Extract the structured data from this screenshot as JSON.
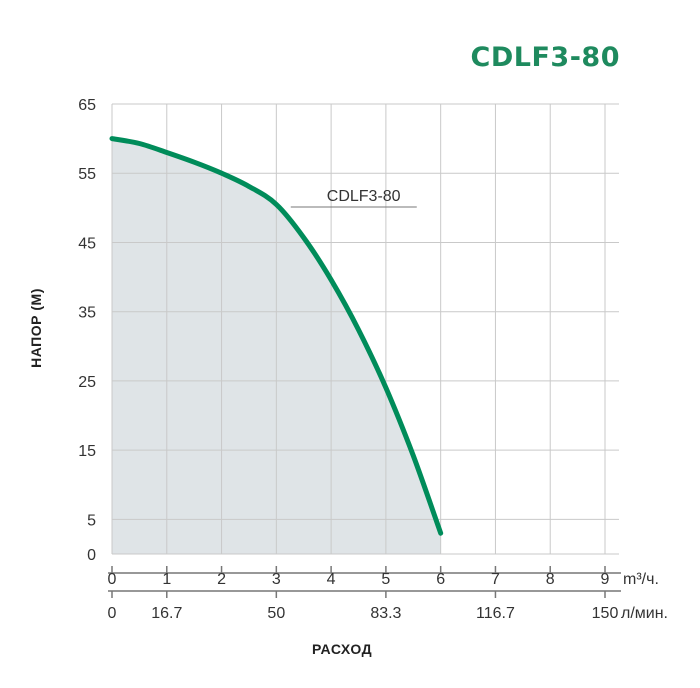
{
  "chart_data": {
    "type": "area",
    "title": "CDLF3-80",
    "ylabel": "НАПОР (М)",
    "xlabel": "РАСХОД",
    "ylim": [
      0,
      65
    ],
    "xlim": [
      0,
      9
    ],
    "yticks": [
      "65",
      "55",
      "45",
      "35",
      "25",
      "15",
      "5",
      "0"
    ],
    "x_primary_unit": "m³/ч.",
    "x_primary_ticks": [
      "0",
      "1",
      "2",
      "3",
      "4",
      "5",
      "6",
      "7",
      "8",
      "9"
    ],
    "x_secondary_unit": "л/мин.",
    "x_secondary_ticks": [
      {
        "label": "0",
        "at": 0
      },
      {
        "label": "16.7",
        "at": 1
      },
      {
        "label": "50",
        "at": 3
      },
      {
        "label": "83.3",
        "at": 5
      },
      {
        "label": "116.7",
        "at": 7
      },
      {
        "label": "150",
        "at": 9
      }
    ],
    "series": [
      {
        "name": "CDLF3-80",
        "x": [
          0,
          0.5,
          1,
          1.5,
          2,
          2.5,
          3,
          3.5,
          4,
          4.5,
          5,
          5.5,
          6
        ],
        "y": [
          60,
          59.3,
          58,
          56.6,
          55,
          53.1,
          50.5,
          45.7,
          39.6,
          32.4,
          24,
          14.2,
          3
        ],
        "label": "CDLF3-80",
        "label_at_x": 3.3
      }
    ],
    "grid": true,
    "colors": {
      "line": "#008c5a",
      "fill": "#dfe4e7",
      "grid": "#c9c9c9",
      "title": "#1e8a5e"
    }
  }
}
